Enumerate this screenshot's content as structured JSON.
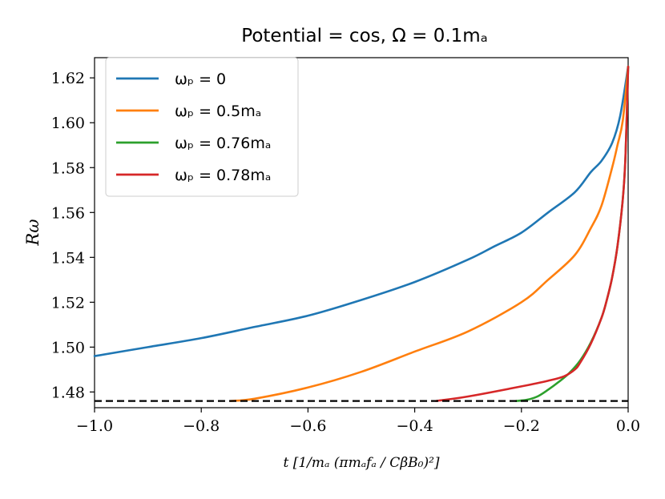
{
  "chart_data": {
    "type": "line",
    "title": "Potential = cos, Ω = 0.1mₐ",
    "xlabel": "t [1/mₐ (πmₐfₐ / CβB₀)²]",
    "ylabel": "Rω",
    "xlim": [
      -1.0,
      0.0
    ],
    "ylim": [
      1.473,
      1.629
    ],
    "xticks": [
      -1.0,
      -0.8,
      -0.6,
      -0.4,
      -0.2,
      0.0
    ],
    "xtick_labels": [
      "−1.0",
      "−0.8",
      "−0.6",
      "−0.4",
      "−0.2",
      "0.0"
    ],
    "yticks": [
      1.48,
      1.5,
      1.52,
      1.54,
      1.56,
      1.58,
      1.6,
      1.62
    ],
    "ytick_labels": [
      "1.48",
      "1.50",
      "1.52",
      "1.54",
      "1.56",
      "1.58",
      "1.60",
      "1.62"
    ],
    "legend_position": "top-left",
    "reference_line": {
      "y": 1.476,
      "style": "dashed",
      "color": "#000000"
    },
    "series": [
      {
        "name": "ωₚ = 0",
        "color": "#1f77b4",
        "x": [
          -1.0,
          -0.9,
          -0.8,
          -0.7,
          -0.6,
          -0.5,
          -0.4,
          -0.3,
          -0.25,
          -0.2,
          -0.15,
          -0.1,
          -0.07,
          -0.05,
          -0.03,
          -0.015,
          0.0
        ],
        "y": [
          1.496,
          1.5,
          1.504,
          1.509,
          1.514,
          1.521,
          1.529,
          1.539,
          1.545,
          1.551,
          1.56,
          1.569,
          1.578,
          1.583,
          1.591,
          1.603,
          1.625
        ]
      },
      {
        "name": "ωₚ = 0.5mₐ",
        "color": "#ff7f0e",
        "x": [
          -0.745,
          -0.7,
          -0.6,
          -0.5,
          -0.4,
          -0.3,
          -0.2,
          -0.15,
          -0.1,
          -0.07,
          -0.05,
          -0.03,
          -0.02,
          -0.01,
          0.0
        ],
        "y": [
          1.476,
          1.477,
          1.482,
          1.489,
          1.498,
          1.507,
          1.52,
          1.53,
          1.541,
          1.553,
          1.563,
          1.58,
          1.59,
          1.601,
          1.625
        ]
      },
      {
        "name": "ωₚ = 0.76mₐ",
        "color": "#2ca02c",
        "x": [
          -0.21,
          -0.19,
          -0.17,
          -0.15,
          -0.13,
          -0.11,
          -0.09,
          -0.07,
          -0.05,
          -0.04,
          -0.03,
          -0.02,
          -0.01,
          -0.005,
          0.0
        ],
        "y": [
          1.476,
          1.4765,
          1.478,
          1.481,
          1.4845,
          1.4885,
          1.494,
          1.502,
          1.513,
          1.521,
          1.531,
          1.545,
          1.566,
          1.585,
          1.625
        ]
      },
      {
        "name": "ωₚ = 0.78mₐ",
        "color": "#d62728",
        "x": [
          -0.36,
          -0.3,
          -0.2,
          -0.15,
          -0.12,
          -0.1,
          -0.09,
          -0.07,
          -0.05,
          -0.04,
          -0.03,
          -0.02,
          -0.01,
          -0.005,
          0.0
        ],
        "y": [
          1.476,
          1.478,
          1.4825,
          1.485,
          1.487,
          1.49,
          1.493,
          1.5015,
          1.513,
          1.521,
          1.531,
          1.545,
          1.566,
          1.585,
          1.625
        ]
      }
    ]
  }
}
